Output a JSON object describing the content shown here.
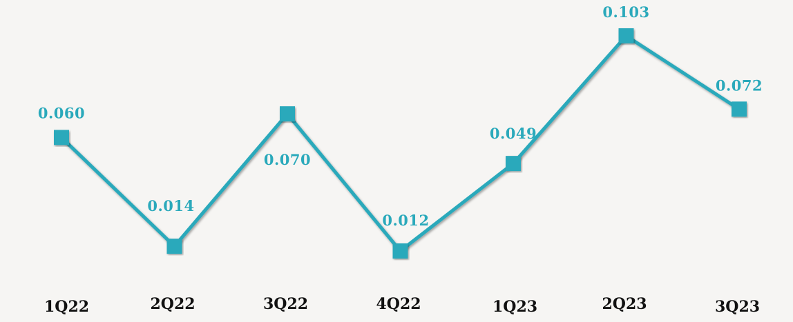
{
  "colors": {
    "background": "#f6f5f3",
    "series": "#2aa9bb",
    "tick_label": "#111111"
  },
  "chart_data": {
    "type": "line",
    "title": "",
    "xlabel": "",
    "ylabel": "",
    "categories": [
      "1Q22",
      "2Q22",
      "3Q22",
      "4Q22",
      "1Q23",
      "2Q23",
      "3Q23"
    ],
    "series": [
      {
        "values": [
          0.06,
          0.014,
          0.07,
          0.012,
          0.049,
          0.103,
          0.072
        ],
        "labels": [
          "0.060",
          "0.014",
          "0.070",
          "0.012",
          "0.049",
          "0.103",
          "0.072"
        ],
        "marker": "square"
      }
    ],
    "ylim": [
      0.012,
      0.103
    ],
    "grid": false,
    "legend": "none",
    "y_axis_visible": false
  }
}
